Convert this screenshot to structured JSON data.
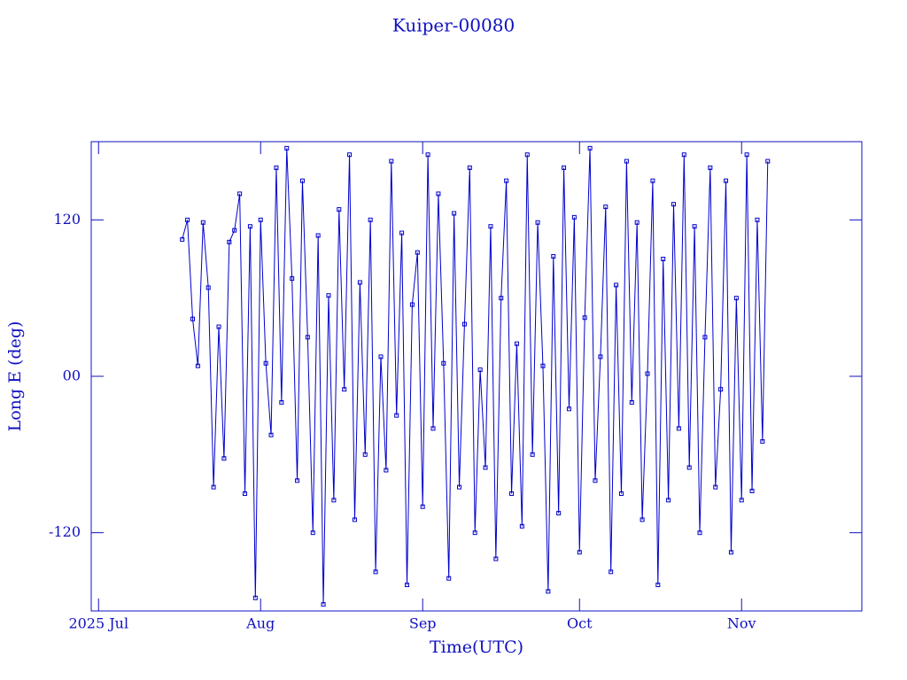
{
  "chart_data": {
    "type": "line",
    "title": "Kuiper-00080",
    "x_label": "Time(UTC)",
    "y_label": "Long E (deg)",
    "x": [
      16,
      17,
      18,
      19,
      20,
      21,
      22,
      23,
      24,
      25,
      26,
      27,
      28,
      29,
      30,
      31,
      32,
      33,
      34,
      35,
      36,
      37,
      38,
      39,
      40,
      41,
      42,
      43,
      44,
      45,
      46,
      47,
      48,
      49,
      50,
      51,
      52,
      53,
      54,
      55,
      56,
      57,
      58,
      59,
      60,
      61,
      62,
      63,
      64,
      65,
      66,
      67,
      68,
      69,
      70,
      71,
      72,
      73,
      74,
      75,
      76,
      77,
      78,
      79,
      80,
      81,
      82,
      83,
      84,
      85,
      86,
      87,
      88,
      89,
      90,
      91,
      92,
      93,
      94,
      95,
      96,
      97,
      98,
      99,
      100,
      101,
      102,
      103,
      104,
      105,
      106,
      107,
      108,
      109,
      110,
      111,
      112,
      113,
      114,
      115,
      116,
      117,
      118,
      119,
      120,
      121,
      122,
      123,
      124,
      125,
      126,
      127,
      128
    ],
    "series": [
      {
        "name": "Kuiper-00080",
        "color": "#0000cc",
        "values": [
          105,
          120,
          44,
          8,
          118,
          68,
          -85,
          38,
          -63,
          103,
          112,
          140,
          -90,
          115,
          -170,
          120,
          10,
          -45,
          160,
          -20,
          175,
          75,
          -80,
          150,
          30,
          -120,
          108,
          -175,
          62,
          -95,
          128,
          -10,
          170,
          -110,
          72,
          -60,
          120,
          -150,
          15,
          -72,
          165,
          -30,
          110,
          -160,
          55,
          95,
          -100,
          170,
          -40,
          140,
          10,
          -155,
          125,
          -85,
          40,
          160,
          -120,
          5,
          -70,
          115,
          -140,
          60,
          150,
          -90,
          25,
          -115,
          170,
          -60,
          118,
          8,
          -165,
          92,
          -105,
          160,
          -25,
          122,
          -135,
          45,
          175,
          -80,
          15,
          130,
          -150,
          70,
          -90,
          165,
          -20,
          118,
          -110,
          2,
          150,
          -160,
          90,
          -95,
          132,
          -40,
          170,
          -70,
          115,
          -120,
          30,
          160,
          -85,
          -10,
          150,
          -135,
          60,
          -95,
          170,
          -88,
          120,
          -50,
          165
        ]
      }
    ],
    "xlim": [
      -1.4,
      146
    ],
    "xticks": [
      {
        "value": 0,
        "label": "2025 Jul"
      },
      {
        "value": 31,
        "label": "Aug"
      },
      {
        "value": 62,
        "label": "Sep"
      },
      {
        "value": 92,
        "label": "Oct"
      },
      {
        "value": 123,
        "label": "Nov"
      }
    ],
    "ylim": [
      -180,
      180
    ],
    "yticks": [
      -120,
      {
        "value": 0,
        "label": "00"
      },
      120
    ]
  }
}
